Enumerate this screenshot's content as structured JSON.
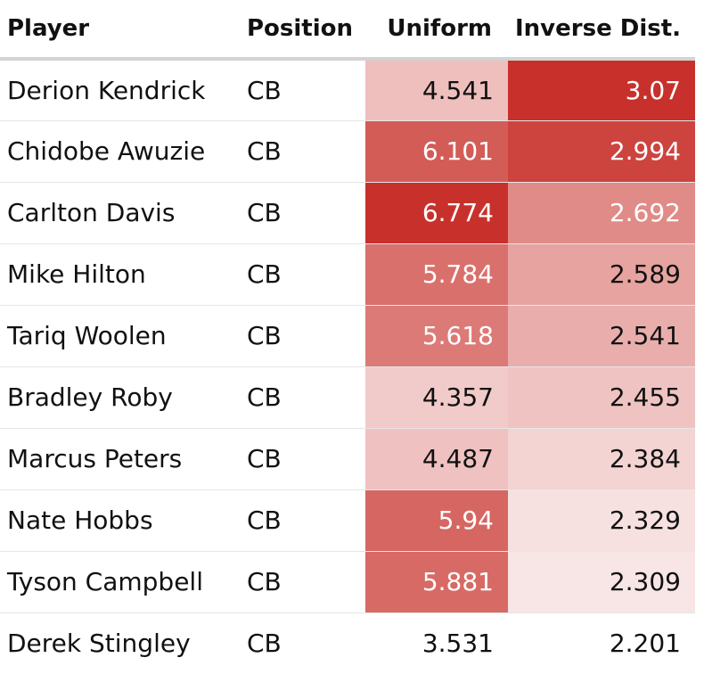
{
  "chart_data": {
    "type": "table",
    "columns": [
      "Player",
      "Position",
      "Uniform",
      "Inverse Dist."
    ],
    "rows": [
      {
        "player": "Derion Kendrick",
        "position": "CB",
        "uniform": "4.541",
        "inverse": "3.07"
      },
      {
        "player": "Chidobe Awuzie",
        "position": "CB",
        "uniform": "6.101",
        "inverse": "2.994"
      },
      {
        "player": "Carlton Davis",
        "position": "CB",
        "uniform": "6.774",
        "inverse": "2.692"
      },
      {
        "player": "Mike Hilton",
        "position": "CB",
        "uniform": "5.784",
        "inverse": "2.589"
      },
      {
        "player": "Tariq Woolen",
        "position": "CB",
        "uniform": "5.618",
        "inverse": "2.541"
      },
      {
        "player": "Bradley Roby",
        "position": "CB",
        "uniform": "4.357",
        "inverse": "2.455"
      },
      {
        "player": "Marcus Peters",
        "position": "CB",
        "uniform": "4.487",
        "inverse": "2.384"
      },
      {
        "player": "Nate Hobbs",
        "position": "CB",
        "uniform": "5.94",
        "inverse": "2.329"
      },
      {
        "player": "Tyson Campbell",
        "position": "CB",
        "uniform": "5.881",
        "inverse": "2.309"
      },
      {
        "player": "Derek Stingley",
        "position": "CB",
        "uniform": "3.531",
        "inverse": "2.201"
      }
    ],
    "scale": {
      "low": "#ffffff",
      "high": "#c8312b",
      "light_text_color": "#ffffff",
      "dark_text_color": "#111111"
    }
  }
}
